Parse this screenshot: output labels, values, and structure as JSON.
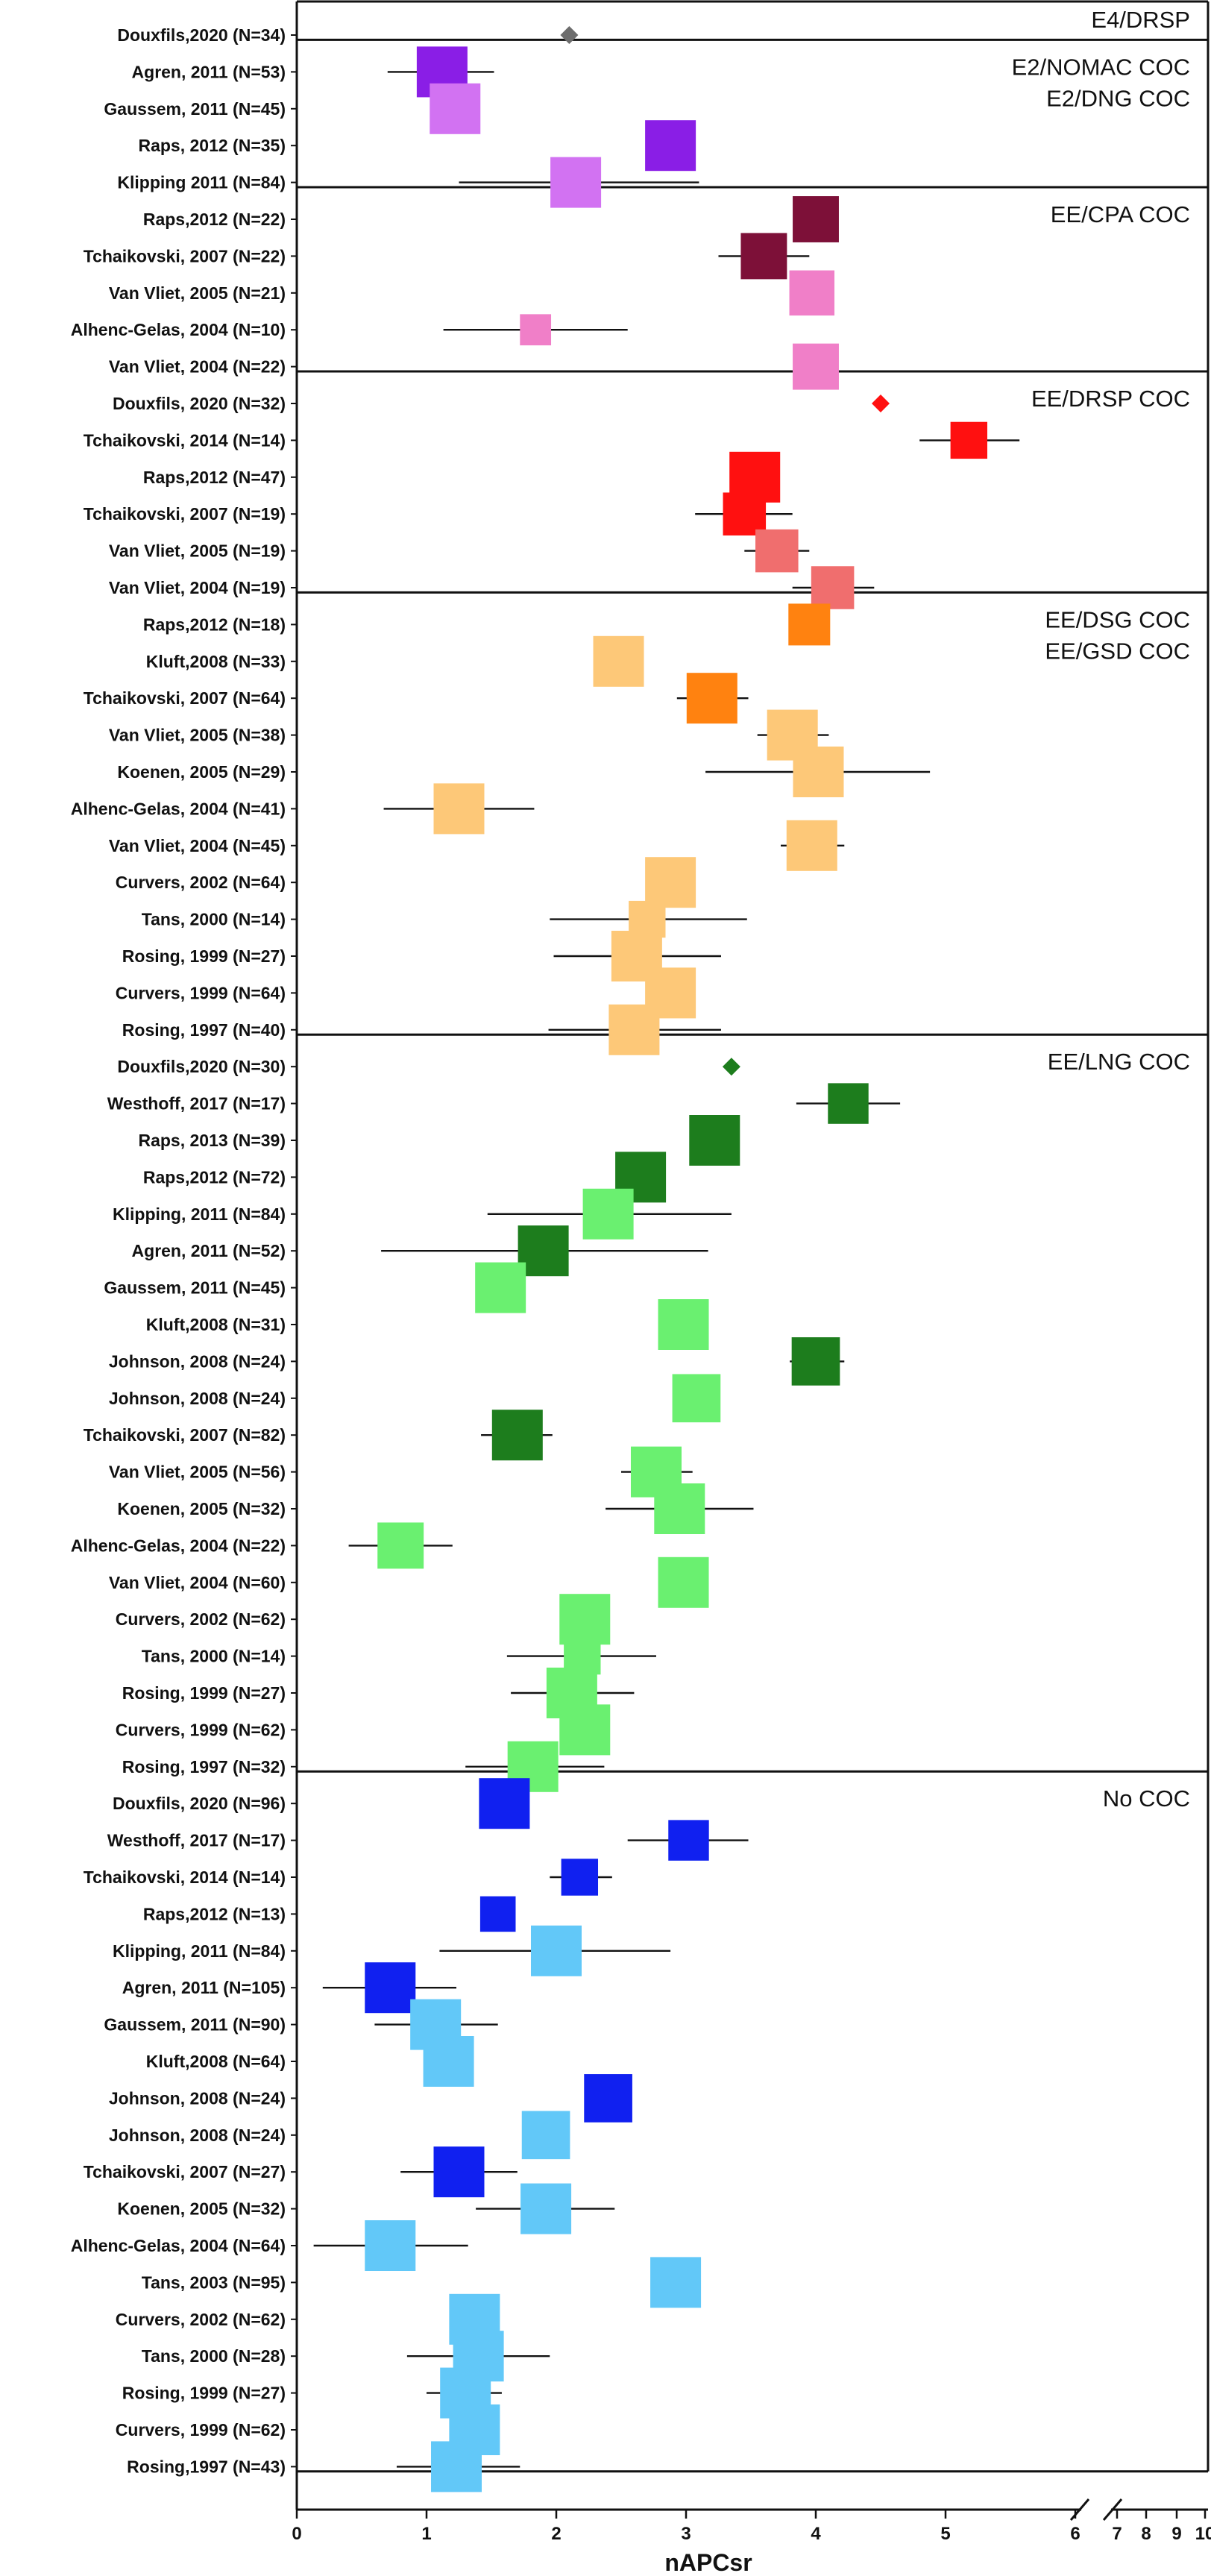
{
  "chart_data": {
    "type": "forest",
    "xlabel": "nAPCsr",
    "xlim": [
      0,
      10
    ],
    "x_ticks": [
      "0",
      "1",
      "2",
      "3",
      "4",
      "5",
      "6",
      "7",
      "8",
      "9",
      "10"
    ],
    "axis_break": "log-like compression between 6 and 10",
    "colors": {
      "gray": "#6d6d6d",
      "purple_dark": "#8a1ee6",
      "purple_light": "#d272f2",
      "maroon": "#7d1038",
      "pink": "#f07fc8",
      "red": "#ff1010",
      "salmon": "#f06e6e",
      "orange": "#ff8210",
      "orange_light": "#fdc878",
      "green_dark": "#1d7d1d",
      "green_light": "#6af070",
      "blue": "#1020f0",
      "blue_light": "#62c8f8",
      "whisker": "#111111",
      "frame": "#111111"
    },
    "groups": [
      {
        "name": "E4/DRSP",
        "label_lines": [
          "E4/DRSP"
        ],
        "studies": [
          {
            "label": "Douxfils,2020 (N=34)",
            "est": 2.1,
            "lo": null,
            "hi": null,
            "marker": "diamond",
            "color": "gray",
            "n": 34
          }
        ]
      },
      {
        "name": "E2/NOMAC COC, E2/DNG COC",
        "label_lines": [
          "E2/NOMAC COC",
          "E2/DNG COC"
        ],
        "studies": [
          {
            "label": "Agren, 2011 (N=53)",
            "est": 1.12,
            "lo": 0.7,
            "hi": 1.52,
            "marker": "square",
            "color": "purple_dark",
            "n": 53
          },
          {
            "label": "Gaussem, 2011 (N=45)",
            "est": 1.22,
            "lo": null,
            "hi": null,
            "marker": "square",
            "color": "purple_light",
            "n": 45
          },
          {
            "label": "Raps, 2012 (N=35)",
            "est": 2.88,
            "lo": null,
            "hi": null,
            "marker": "square",
            "color": "purple_dark",
            "n": 35
          },
          {
            "label": "Klipping 2011 (N=84)",
            "est": 2.15,
            "lo": 1.25,
            "hi": 3.1,
            "marker": "square",
            "color": "purple_light",
            "n": 84
          }
        ]
      },
      {
        "name": "EE/CPA COC",
        "label_lines": [
          "EE/CPA COC"
        ],
        "studies": [
          {
            "label": "Raps,2012 (N=22)",
            "est": 4.0,
            "lo": null,
            "hi": null,
            "marker": "square",
            "color": "maroon",
            "n": 22
          },
          {
            "label": "Tchaikovski, 2007 (N=22)",
            "est": 3.6,
            "lo": 3.25,
            "hi": 3.95,
            "marker": "square",
            "color": "maroon",
            "n": 22
          },
          {
            "label": "Van Vliet, 2005 (N=21)",
            "est": 3.97,
            "lo": 3.85,
            "hi": 4.1,
            "marker": "square",
            "color": "pink",
            "n": 21
          },
          {
            "label": "Alhenc-Gelas, 2004 (N=10)",
            "est": 1.84,
            "lo": 1.13,
            "hi": 2.55,
            "marker": "square",
            "color": "pink",
            "n": 10
          },
          {
            "label": "Van Vliet, 2004 (N=22)",
            "est": 4.0,
            "lo": 3.88,
            "hi": 4.13,
            "marker": "square",
            "color": "pink",
            "n": 22
          }
        ]
      },
      {
        "name": "EE/DRSP COC",
        "label_lines": [
          "EE/DRSP COC"
        ],
        "studies": [
          {
            "label": "Douxfils, 2020 (N=32)",
            "est": 4.5,
            "lo": null,
            "hi": null,
            "marker": "diamond",
            "color": "red",
            "n": 32
          },
          {
            "label": "Tchaikovski, 2014 (N=14)",
            "est": 5.18,
            "lo": 4.8,
            "hi": 5.57,
            "marker": "square",
            "color": "red",
            "n": 14
          },
          {
            "label": "Raps,2012 (N=47)",
            "est": 3.53,
            "lo": null,
            "hi": null,
            "marker": "square",
            "color": "red",
            "n": 47
          },
          {
            "label": "Tchaikovski, 2007 (N=19)",
            "est": 3.45,
            "lo": 3.07,
            "hi": 3.82,
            "marker": "square",
            "color": "red",
            "n": 19
          },
          {
            "label": "Van Vliet, 2005 (N=19)",
            "est": 3.7,
            "lo": 3.45,
            "hi": 3.95,
            "marker": "square",
            "color": "salmon",
            "n": 19
          },
          {
            "label": "Van Vliet, 2004 (N=19)",
            "est": 4.13,
            "lo": 3.82,
            "hi": 4.45,
            "marker": "square",
            "color": "salmon",
            "n": 19
          }
        ]
      },
      {
        "name": "EE/DSG COC, EE/GSD COC",
        "label_lines": [
          "EE/DSG COC",
          "EE/GSD COC"
        ],
        "studies": [
          {
            "label": "Raps,2012 (N=18)",
            "est": 3.95,
            "lo": null,
            "hi": null,
            "marker": "square",
            "color": "orange",
            "n": 18
          },
          {
            "label": "Kluft,2008 (N=33)",
            "est": 2.48,
            "lo": null,
            "hi": null,
            "marker": "square",
            "color": "orange_light",
            "n": 33
          },
          {
            "label": "Tchaikovski, 2007 (N=64)",
            "est": 3.2,
            "lo": 2.93,
            "hi": 3.48,
            "marker": "square",
            "color": "orange",
            "n": 64
          },
          {
            "label": "Van Vliet, 2005 (N=38)",
            "est": 3.82,
            "lo": 3.55,
            "hi": 4.1,
            "marker": "square",
            "color": "orange_light",
            "n": 38
          },
          {
            "label": "Koenen, 2005 (N=29)",
            "est": 4.02,
            "lo": 3.15,
            "hi": 4.88,
            "marker": "square",
            "color": "orange_light",
            "n": 29
          },
          {
            "label": "Alhenc-Gelas, 2004 (N=41)",
            "est": 1.25,
            "lo": 0.67,
            "hi": 1.83,
            "marker": "square",
            "color": "orange_light",
            "n": 41
          },
          {
            "label": "Van Vliet, 2004 (N=45)",
            "est": 3.97,
            "lo": 3.73,
            "hi": 4.22,
            "marker": "square",
            "color": "orange_light",
            "n": 45
          },
          {
            "label": "Curvers, 2002 (N=64)",
            "est": 2.88,
            "lo": null,
            "hi": null,
            "marker": "square",
            "color": "orange_light",
            "n": 64
          },
          {
            "label": "Tans, 2000 (N=14)",
            "est": 2.7,
            "lo": 1.95,
            "hi": 3.47,
            "marker": "square",
            "color": "orange_light",
            "n": 14
          },
          {
            "label": "Rosing, 1999 (N=27)",
            "est": 2.62,
            "lo": 1.98,
            "hi": 3.27,
            "marker": "square",
            "color": "orange_light",
            "n": 27
          },
          {
            "label": "Curvers, 1999 (N=64)",
            "est": 2.88,
            "lo": null,
            "hi": null,
            "marker": "square",
            "color": "orange_light",
            "n": 64
          },
          {
            "label": "Rosing, 1997 (N=40)",
            "est": 2.6,
            "lo": 1.94,
            "hi": 3.27,
            "marker": "square",
            "color": "orange_light",
            "n": 40
          }
        ]
      },
      {
        "name": "EE/LNG COC",
        "label_lines": [
          "EE/LNG COC"
        ],
        "studies": [
          {
            "label": "Douxfils,2020 (N=30)",
            "est": 3.35,
            "lo": null,
            "hi": null,
            "marker": "diamond",
            "color": "green_dark",
            "n": 30
          },
          {
            "label": "Westhoff, 2017 (N=17)",
            "est": 4.25,
            "lo": 3.85,
            "hi": 4.65,
            "marker": "square",
            "color": "green_dark",
            "n": 17
          },
          {
            "label": "Raps, 2013 (N=39)",
            "est": 3.22,
            "lo": null,
            "hi": null,
            "marker": "square",
            "color": "green_dark",
            "n": 39
          },
          {
            "label": "Raps,2012 (N=72)",
            "est": 2.65,
            "lo": null,
            "hi": null,
            "marker": "square",
            "color": "green_dark",
            "n": 72
          },
          {
            "label": "Klipping, 2011 (N=84)",
            "est": 2.4,
            "lo": 1.47,
            "hi": 3.35,
            "marker": "square",
            "color": "green_light",
            "n": 84
          },
          {
            "label": "Agren, 2011 (N=52)",
            "est": 1.9,
            "lo": 0.65,
            "hi": 3.17,
            "marker": "square",
            "color": "green_dark",
            "n": 52
          },
          {
            "label": "Gaussem, 2011 (N=45)",
            "est": 1.57,
            "lo": null,
            "hi": null,
            "marker": "square",
            "color": "green_light",
            "n": 45
          },
          {
            "label": "Kluft,2008 (N=31)",
            "est": 2.98,
            "lo": null,
            "hi": null,
            "marker": "square",
            "color": "green_light",
            "n": 31
          },
          {
            "label": "Johnson, 2008 (N=24)",
            "est": 4.0,
            "lo": 3.8,
            "hi": 4.22,
            "marker": "square",
            "color": "green_dark",
            "n": 24
          },
          {
            "label": "Johnson, 2008 (N=24)",
            "est": 3.08,
            "lo": 2.93,
            "hi": 3.25,
            "marker": "square",
            "color": "green_light",
            "n": 24
          },
          {
            "label": "Tchaikovski, 2007 (N=82)",
            "est": 1.7,
            "lo": 1.42,
            "hi": 1.97,
            "marker": "square",
            "color": "green_dark",
            "n": 82
          },
          {
            "label": "Van Vliet, 2005 (N=56)",
            "est": 2.77,
            "lo": 2.5,
            "hi": 3.05,
            "marker": "square",
            "color": "green_light",
            "n": 56
          },
          {
            "label": "Koenen, 2005 (N=32)",
            "est": 2.95,
            "lo": 2.38,
            "hi": 3.52,
            "marker": "square",
            "color": "green_light",
            "n": 32
          },
          {
            "label": "Alhenc-Gelas, 2004 (N=22)",
            "est": 0.8,
            "lo": 0.4,
            "hi": 1.2,
            "marker": "square",
            "color": "green_light",
            "n": 22
          },
          {
            "label": "Van Vliet, 2004 (N=60)",
            "est": 2.98,
            "lo": 2.87,
            "hi": 3.1,
            "marker": "square",
            "color": "green_light",
            "n": 60
          },
          {
            "label": "Curvers, 2002 (N=62)",
            "est": 2.22,
            "lo": null,
            "hi": null,
            "marker": "square",
            "color": "green_light",
            "n": 62
          },
          {
            "label": "Tans, 2000 (N=14)",
            "est": 2.2,
            "lo": 1.62,
            "hi": 2.77,
            "marker": "square",
            "color": "green_light",
            "n": 14
          },
          {
            "label": "Rosing, 1999 (N=27)",
            "est": 2.12,
            "lo": 1.65,
            "hi": 2.6,
            "marker": "square",
            "color": "green_light",
            "n": 27
          },
          {
            "label": "Curvers, 1999 (N=62)",
            "est": 2.22,
            "lo": null,
            "hi": null,
            "marker": "square",
            "color": "green_light",
            "n": 62
          },
          {
            "label": "Rosing, 1997 (N=32)",
            "est": 1.82,
            "lo": 1.3,
            "hi": 2.37,
            "marker": "square",
            "color": "green_light",
            "n": 32
          }
        ]
      },
      {
        "name": "No COC",
        "label_lines": [
          "No COC"
        ],
        "studies": [
          {
            "label": "Douxfils, 2020 (N=96)",
            "est": 1.6,
            "lo": null,
            "hi": null,
            "marker": "square",
            "color": "blue",
            "n": 96
          },
          {
            "label": "Westhoff, 2017 (N=17)",
            "est": 3.02,
            "lo": 2.55,
            "hi": 3.48,
            "marker": "square",
            "color": "blue",
            "n": 17
          },
          {
            "label": "Tchaikovski, 2014 (N=14)",
            "est": 2.18,
            "lo": 1.95,
            "hi": 2.43,
            "marker": "square",
            "color": "blue",
            "n": 14
          },
          {
            "label": "Raps,2012 (N=13)",
            "est": 1.55,
            "lo": null,
            "hi": null,
            "marker": "square",
            "color": "blue",
            "n": 13
          },
          {
            "label": "Klipping, 2011 (N=84)",
            "est": 2.0,
            "lo": 1.1,
            "hi": 2.88,
            "marker": "square",
            "color": "blue_light",
            "n": 84
          },
          {
            "label": "Agren, 2011 (N=105)",
            "est": 0.72,
            "lo": 0.2,
            "hi": 1.23,
            "marker": "square",
            "color": "blue",
            "n": 105
          },
          {
            "label": "Gaussem, 2011 (N=90)",
            "est": 1.07,
            "lo": 0.6,
            "hi": 1.55,
            "marker": "square",
            "color": "blue_light",
            "n": 90
          },
          {
            "label": "Kluft,2008 (N=64)",
            "est": 1.17,
            "lo": null,
            "hi": null,
            "marker": "square",
            "color": "blue_light",
            "n": 64
          },
          {
            "label": "Johnson, 2008 (N=24)",
            "est": 2.4,
            "lo": 2.28,
            "hi": 2.52,
            "marker": "square",
            "color": "blue",
            "n": 24
          },
          {
            "label": "Johnson, 2008 (N=24)",
            "est": 1.92,
            "lo": 1.82,
            "hi": 2.03,
            "marker": "square",
            "color": "blue_light",
            "n": 24
          },
          {
            "label": "Tchaikovski, 2007 (N=27)",
            "est": 1.25,
            "lo": 0.8,
            "hi": 1.7,
            "marker": "square",
            "color": "blue",
            "n": 27
          },
          {
            "label": "Koenen, 2005 (N=32)",
            "est": 1.92,
            "lo": 1.38,
            "hi": 2.45,
            "marker": "square",
            "color": "blue_light",
            "n": 32
          },
          {
            "label": "Alhenc-Gelas, 2004 (N=64)",
            "est": 0.72,
            "lo": 0.13,
            "hi": 1.32,
            "marker": "square",
            "color": "blue_light",
            "n": 64
          },
          {
            "label": "Tans, 2003 (N=95)",
            "est": 2.92,
            "lo": null,
            "hi": null,
            "marker": "square",
            "color": "blue_light",
            "n": 95
          },
          {
            "label": "Curvers, 2002 (N=62)",
            "est": 1.37,
            "lo": null,
            "hi": null,
            "marker": "square",
            "color": "blue_light",
            "n": 62
          },
          {
            "label": "Tans, 2000 (N=28)",
            "est": 1.4,
            "lo": 0.85,
            "hi": 1.95,
            "marker": "square",
            "color": "blue_light",
            "n": 28
          },
          {
            "label": "Rosing, 1999 (N=27)",
            "est": 1.3,
            "lo": 1.0,
            "hi": 1.58,
            "marker": "square",
            "color": "blue_light",
            "n": 27
          },
          {
            "label": "Curvers, 1999 (N=62)",
            "est": 1.37,
            "lo": null,
            "hi": null,
            "marker": "square",
            "color": "blue_light",
            "n": 62
          },
          {
            "label": "Rosing,1997 (N=43)",
            "est": 1.23,
            "lo": 0.77,
            "hi": 1.72,
            "marker": "square",
            "color": "blue_light",
            "n": 43
          }
        ]
      }
    ]
  }
}
